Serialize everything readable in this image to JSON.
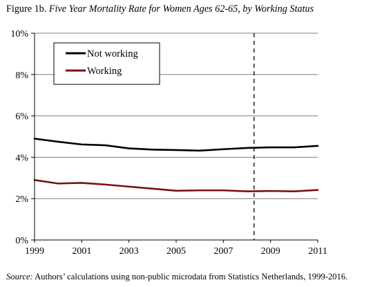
{
  "figure": {
    "label": "Figure 1b.",
    "title": "Five Year Mortality Rate for Women Ages 62-65, by Working Status"
  },
  "source": {
    "label": "Source:",
    "text": "Authors’ calculations using non-public microdata from Statistics Netherlands, 1999-2016."
  },
  "chart_data": {
    "type": "line",
    "title": "Five Year Mortality Rate for Women Ages 62-65, by Working Status",
    "xlabel": "",
    "ylabel": "",
    "x": [
      1999,
      2000,
      2001,
      2002,
      2003,
      2004,
      2005,
      2006,
      2007,
      2008,
      2009,
      2010,
      2011
    ],
    "xlim": [
      1999,
      2011
    ],
    "ylim": [
      0,
      10
    ],
    "xticks": [
      1999,
      2001,
      2003,
      2005,
      2007,
      2009,
      2011
    ],
    "yticks": [
      0,
      2,
      4,
      6,
      8,
      10
    ],
    "ytick_labels": [
      "0%",
      "2%",
      "4%",
      "6%",
      "8%",
      "10%"
    ],
    "grid": "horizontal",
    "legend": "top-left",
    "series": [
      {
        "name": "Not working",
        "color": "#000000",
        "values": [
          4.9,
          4.75,
          4.62,
          4.58,
          4.43,
          4.37,
          4.35,
          4.32,
          4.39,
          4.45,
          4.48,
          4.48,
          4.55
        ]
      },
      {
        "name": "Working",
        "color": "#7a1010",
        "values": [
          2.9,
          2.73,
          2.76,
          2.68,
          2.58,
          2.48,
          2.38,
          2.4,
          2.4,
          2.35,
          2.37,
          2.35,
          2.42
        ]
      }
    ],
    "vertical_line": {
      "x": 2008.3,
      "style": "dashed",
      "color": "#000000"
    }
  }
}
